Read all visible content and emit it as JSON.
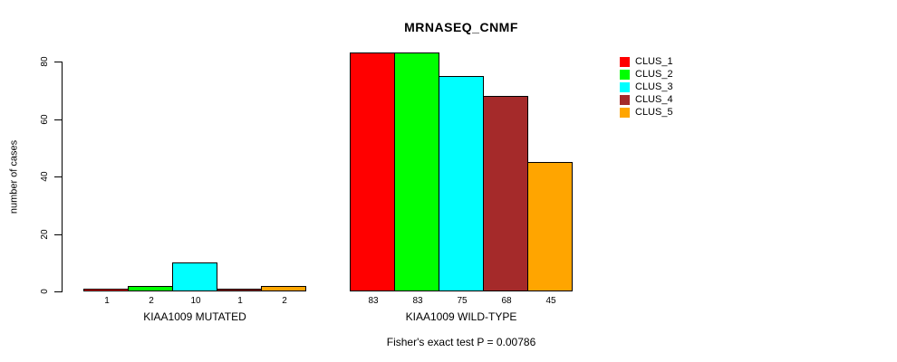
{
  "chart_data": {
    "type": "bar",
    "title": "MRNASEQ_CNMF",
    "ylabel": "number of cases",
    "xlabel": "",
    "ylim": [
      0,
      80
    ],
    "yticks": [
      0,
      20,
      40,
      60,
      80
    ],
    "grid": false,
    "legend_position": "right-outside",
    "categories": [
      "KIAA1009 MUTATED",
      "KIAA1009 WILD-TYPE"
    ],
    "groups": [
      {
        "label": "KIAA1009 MUTATED",
        "values": [
          1,
          2,
          10,
          1,
          2
        ],
        "bar_labels": [
          "1",
          "2",
          "10",
          "1",
          "2"
        ]
      },
      {
        "label": "KIAA1009 WILD-TYPE",
        "values": [
          83,
          83,
          75,
          68,
          45
        ],
        "bar_labels": [
          "83",
          "83",
          "75",
          "68",
          "45"
        ]
      }
    ],
    "series": [
      {
        "name": "CLUS_1",
        "color": "#ff0000",
        "values": [
          1,
          83
        ]
      },
      {
        "name": "CLUS_2",
        "color": "#00ff00",
        "values": [
          2,
          83
        ]
      },
      {
        "name": "CLUS_3",
        "color": "#00ffff",
        "values": [
          10,
          75
        ]
      },
      {
        "name": "CLUS_4",
        "color": "#a52a2a",
        "values": [
          1,
          68
        ]
      },
      {
        "name": "CLUS_5",
        "color": "#ffa500",
        "values": [
          2,
          45
        ]
      }
    ],
    "legend": [
      {
        "label": "CLUS_1",
        "color": "#ff0000"
      },
      {
        "label": "CLUS_2",
        "color": "#00ff00"
      },
      {
        "label": "CLUS_3",
        "color": "#00ffff"
      },
      {
        "label": "CLUS_4",
        "color": "#a52a2a"
      },
      {
        "label": "CLUS_5",
        "color": "#ffa500"
      }
    ],
    "annotation": "Fisher's exact test P = 0.00786",
    "axis_color": "#000000",
    "bar_border_color": "#000000",
    "background_color": "#ffffff"
  }
}
